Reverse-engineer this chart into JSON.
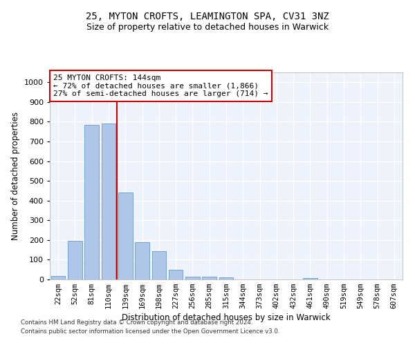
{
  "title_line1": "25, MYTON CROFTS, LEAMINGTON SPA, CV31 3NZ",
  "title_line2": "Size of property relative to detached houses in Warwick",
  "xlabel": "Distribution of detached houses by size in Warwick",
  "ylabel": "Number of detached properties",
  "annotation_line1": "25 MYTON CROFTS: 144sqm",
  "annotation_line2": "← 72% of detached houses are smaller (1,866)",
  "annotation_line3": "27% of semi-detached houses are larger (714) →",
  "footnote1": "Contains HM Land Registry data © Crown copyright and database right 2024.",
  "footnote2": "Contains public sector information licensed under the Open Government Licence v3.0.",
  "bar_labels": [
    "22sqm",
    "52sqm",
    "81sqm",
    "110sqm",
    "139sqm",
    "169sqm",
    "198sqm",
    "227sqm",
    "256sqm",
    "285sqm",
    "315sqm",
    "344sqm",
    "373sqm",
    "402sqm",
    "432sqm",
    "461sqm",
    "490sqm",
    "519sqm",
    "549sqm",
    "578sqm",
    "607sqm"
  ],
  "bar_values": [
    18,
    195,
    785,
    790,
    440,
    190,
    145,
    50,
    15,
    13,
    10,
    0,
    0,
    0,
    0,
    8,
    0,
    0,
    0,
    0,
    0
  ],
  "bar_color": "#aec6e8",
  "bar_edge_color": "#6699cc",
  "vline_x": 3.5,
  "vline_color": "#cc0000",
  "annotation_box_color": "#cc0000",
  "ylim": [
    0,
    1050
  ],
  "yticks": [
    0,
    100,
    200,
    300,
    400,
    500,
    600,
    700,
    800,
    900,
    1000
  ],
  "background_color": "#eef2fa",
  "grid_color": "#ffffff",
  "title1_fontsize": 10,
  "title2_fontsize": 9,
  "ylabel_fontsize": 8.5,
  "xlabel_fontsize": 8.5,
  "annotation_fontsize": 8,
  "tick_fontsize": 7.5,
  "ytick_fontsize": 8
}
